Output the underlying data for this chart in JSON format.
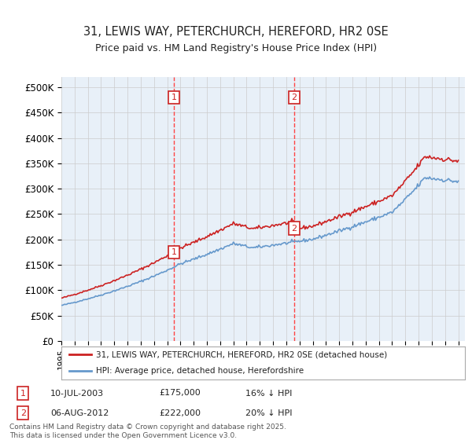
{
  "title_line1": "31, LEWIS WAY, PETERCHURCH, HEREFORD, HR2 0SE",
  "title_line2": "Price paid vs. HM Land Registry's House Price Index (HPI)",
  "ylabel_ticks": [
    "£0",
    "£50K",
    "£100K",
    "£150K",
    "£200K",
    "£250K",
    "£300K",
    "£350K",
    "£400K",
    "£450K",
    "£500K"
  ],
  "ytick_values": [
    0,
    50000,
    100000,
    150000,
    200000,
    250000,
    300000,
    350000,
    400000,
    450000,
    500000
  ],
  "ylim": [
    0,
    520000
  ],
  "xlim_start": 1995.0,
  "xlim_end": 2025.5,
  "sale1_date": 2003.52,
  "sale1_price": 175000,
  "sale1_label": "1",
  "sale2_date": 2012.59,
  "sale2_price": 222000,
  "sale2_label": "2",
  "hpi_color": "#6699cc",
  "price_color": "#cc2222",
  "vline_color": "#ff4444",
  "background_plot": "#e8f0f8",
  "legend_label_price": "31, LEWIS WAY, PETERCHURCH, HEREFORD, HR2 0SE (detached house)",
  "legend_label_hpi": "HPI: Average price, detached house, Herefordshire",
  "footnote": "Contains HM Land Registry data © Crown copyright and database right 2025.\nThis data is licensed under the Open Government Licence v3.0.",
  "xtick_years": [
    1995,
    1996,
    1997,
    1998,
    1999,
    2000,
    2001,
    2002,
    2003,
    2004,
    2005,
    2006,
    2007,
    2008,
    2009,
    2010,
    2011,
    2012,
    2013,
    2014,
    2015,
    2016,
    2017,
    2018,
    2019,
    2020,
    2021,
    2022,
    2023,
    2024,
    2025
  ],
  "sale1_date_str": "10-JUL-2003",
  "sale1_price_str": "£175,000",
  "sale1_hpi_str": "16% ↓ HPI",
  "sale2_date_str": "06-AUG-2012",
  "sale2_price_str": "£222,000",
  "sale2_hpi_str": "20% ↓ HPI"
}
